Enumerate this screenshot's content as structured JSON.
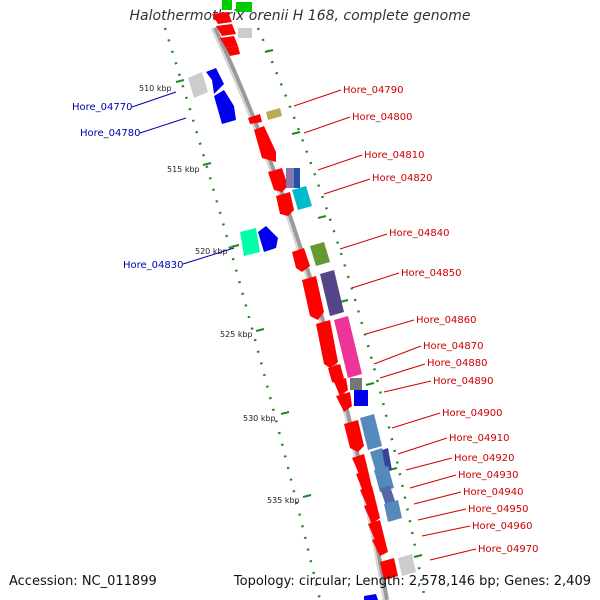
{
  "title": "Halothermothrix orenii H 168, complete genome",
  "accession": "Accession: NC_011899",
  "topology": "Topology: circular; Length: 2,578,146 bp; Genes: 2,409",
  "scale_labels": [
    "510 kbp",
    "515 kbp",
    "520 kbp",
    "525 kbp",
    "530 kbp",
    "535 kbp"
  ],
  "genes_right": [
    "Hore_04790",
    "Hore_04800",
    "Hore_04810",
    "Hore_04820",
    "Hore_04840",
    "Hore_04850",
    "Hore_04860",
    "Hore_04870",
    "Hore_04880",
    "Hore_04890",
    "Hore_04900",
    "Hore_04910",
    "Hore_04920",
    "Hore_04930",
    "Hore_04940",
    "Hore_04950",
    "Hore_04960",
    "Hore_04970"
  ],
  "genes_left": [
    "Hore_04770",
    "Hore_04780",
    "Hore_04830"
  ],
  "colors": {
    "forward_gene": "#ff0000",
    "reverse_gene": "#0000ee",
    "backbone": "#999999",
    "ticks": "#228822",
    "right_label": "#cc0000",
    "left_label": "#0000aa"
  }
}
